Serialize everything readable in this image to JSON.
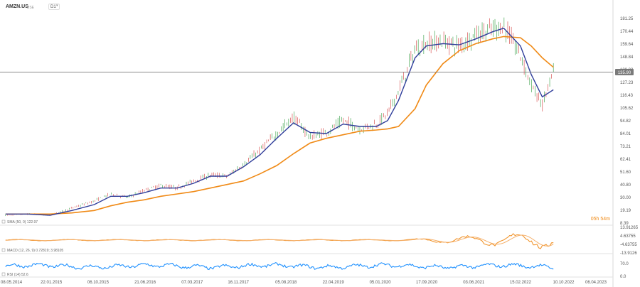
{
  "header": {
    "symbol": "AMZN.US",
    "exchange": "BSE",
    "timeframe": "D1"
  },
  "countdown": "05h 54m",
  "colors": {
    "price": "#2b9a3b",
    "sma_fast": "#2f3d9a",
    "sma_slow": "#f08a16",
    "macd": "#f08a16",
    "rsi": "#1e90ff",
    "current": "#7a7a7a"
  },
  "chart_data": [
    {
      "type": "line",
      "title": "AMZN.US",
      "xlabel": "",
      "ylabel": "",
      "current_price_label": "135.90",
      "x_ticks": [
        "08.05.2014",
        "22.01.2015",
        "06.10.2015",
        "21.06.2016",
        "07.03.2017",
        "16.11.2017",
        "05.08.2018",
        "22.04.2019",
        "05.01.2020",
        "17.09.2020",
        "03.06.2021",
        "15.02.2022",
        "10.10.2022",
        "06.04.2023"
      ],
      "y_ticks": [
        "181.25",
        "170.44",
        "159.64",
        "148.84",
        "138.03",
        "127.23",
        "116.43",
        "105.62",
        "94.82",
        "84.01",
        "73.21",
        "62.41",
        "51.60",
        "40.80",
        "30.00",
        "19.19",
        "8.39"
      ],
      "ylim": [
        8.39,
        181.25
      ],
      "legend": "SMA (50, 0) 122.97",
      "x": [
        "2014-05",
        "2014-09",
        "2015-01",
        "2015-05",
        "2015-09",
        "2015-12",
        "2016-03",
        "2016-06",
        "2016-09",
        "2016-12",
        "2017-03",
        "2017-06",
        "2017-09",
        "2017-12",
        "2018-03",
        "2018-06",
        "2018-09",
        "2018-12",
        "2019-03",
        "2019-06",
        "2019-09",
        "2019-12",
        "2020-02",
        "2020-04",
        "2020-07",
        "2020-09",
        "2020-12",
        "2021-03",
        "2021-06",
        "2021-09",
        "2021-11",
        "2022-02",
        "2022-04",
        "2022-06",
        "2022-08"
      ],
      "series": [
        {
          "values": [
            15,
            16,
            15,
            21,
            27,
            33,
            30,
            36,
            40,
            38,
            44,
            49,
            48,
            58,
            70,
            84,
            98,
            81,
            85,
            95,
            88,
            92,
            101,
            120,
            155,
            160,
            162,
            158,
            168,
            172,
            175,
            150,
            125,
            108,
            136
          ]
        },
        {
          "values": [
            16,
            16,
            15,
            19,
            24,
            31,
            31,
            34,
            38,
            38,
            42,
            48,
            48,
            56,
            66,
            80,
            93,
            85,
            84,
            92,
            90,
            90,
            95,
            112,
            148,
            158,
            160,
            159,
            164,
            170,
            173,
            158,
            134,
            115,
            121
          ]
        },
        {
          "values": [
            16,
            16,
            16,
            17,
            19,
            23,
            26,
            28,
            31,
            33,
            35,
            38,
            41,
            44,
            50,
            57,
            67,
            76,
            80,
            83,
            86,
            87,
            88,
            90,
            105,
            125,
            143,
            154,
            160,
            164,
            166,
            165,
            158,
            148,
            140
          ]
        }
      ]
    },
    {
      "type": "line",
      "title": "MACD (12, 26, 9) 0.72819; 3.98105",
      "y_ticks": [
        "13.91265",
        "4.63755",
        "-4.63755",
        "-13.9126"
      ],
      "ylim": [
        -13.9126,
        13.91265
      ]
    },
    {
      "type": "line",
      "title": "RSI (14) 52.6",
      "y_ticks": [
        "70.0",
        "0.0"
      ],
      "ylim": [
        0,
        100
      ]
    }
  ]
}
